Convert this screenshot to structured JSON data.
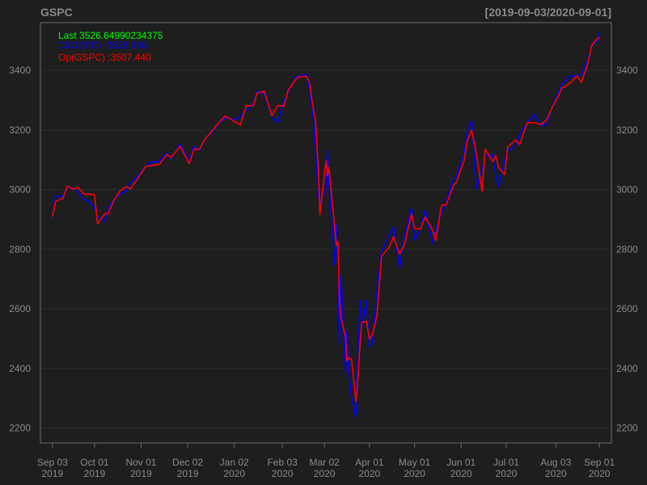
{
  "chart_data": {
    "type": "line",
    "title": "GSPC",
    "date_range": "[2019-09-03/2020-09-01]",
    "xlabel": "",
    "ylabel": "",
    "ylim": [
      2150,
      3560
    ],
    "xlim": [
      "2019-08-26",
      "2020-09-09"
    ],
    "grid": true,
    "legend_position": "top-left",
    "colors": {
      "background": "#1e1e1e",
      "frame": "#6a6a6a",
      "grid": "#2c2c2c",
      "text": "#8a8a8a",
      "last": "#00ff00",
      "cl": "#0000ff",
      "op": "#ff0000"
    },
    "legend": [
      {
        "key": "last",
        "text": "Last 3526.64990234375"
      },
      {
        "key": "cl",
        "text": "Cl(GSPC) :3526.650"
      },
      {
        "key": "op",
        "text": "Op(GSPC) :3507.440"
      }
    ],
    "y_ticks": [
      2200,
      2400,
      2600,
      2800,
      3000,
      3200,
      3400
    ],
    "x_ticks": [
      {
        "date": "2019-09-03",
        "label1": "Sep 03",
        "label2": "2019"
      },
      {
        "date": "2019-10-01",
        "label1": "Oct 01",
        "label2": "2019"
      },
      {
        "date": "2019-11-01",
        "label1": "Nov 01",
        "label2": "2019"
      },
      {
        "date": "2019-12-02",
        "label1": "Dec 02",
        "label2": "2019"
      },
      {
        "date": "2020-01-02",
        "label1": "Jan 02",
        "label2": "2020"
      },
      {
        "date": "2020-02-03",
        "label1": "Feb 03",
        "label2": "2020"
      },
      {
        "date": "2020-03-02",
        "label1": "Mar 02",
        "label2": "2020"
      },
      {
        "date": "2020-04-01",
        "label1": "Apr 01",
        "label2": "2020"
      },
      {
        "date": "2020-05-01",
        "label1": "May 01",
        "label2": "2020"
      },
      {
        "date": "2020-06-01",
        "label1": "Jun 01",
        "label2": "2020"
      },
      {
        "date": "2020-07-01",
        "label1": "Jul 01",
        "label2": "2020"
      },
      {
        "date": "2020-08-03",
        "label1": "Aug 03",
        "label2": "2020"
      },
      {
        "date": "2020-09-01",
        "label1": "Sep 01",
        "label2": "2020"
      }
    ],
    "series": [
      {
        "name": "Cl(GSPC)",
        "key": "cl",
        "points": [
          [
            "2019-09-03",
            2906
          ],
          [
            "2019-09-05",
            2976
          ],
          [
            "2019-09-10",
            2979
          ],
          [
            "2019-09-13",
            3007
          ],
          [
            "2019-09-17",
            3005
          ],
          [
            "2019-09-20",
            2992
          ],
          [
            "2019-09-24",
            2966
          ],
          [
            "2019-09-27",
            2962
          ],
          [
            "2019-10-01",
            2940
          ],
          [
            "2019-10-03",
            2910
          ],
          [
            "2019-10-08",
            2893
          ],
          [
            "2019-10-10",
            2938
          ],
          [
            "2019-10-14",
            2966
          ],
          [
            "2019-10-18",
            2986
          ],
          [
            "2019-10-22",
            2995
          ],
          [
            "2019-10-25",
            3023
          ],
          [
            "2019-10-30",
            3046
          ],
          [
            "2019-11-04",
            3078
          ],
          [
            "2019-11-08",
            3093
          ],
          [
            "2019-11-13",
            3094
          ],
          [
            "2019-11-18",
            3122
          ],
          [
            "2019-11-21",
            3103
          ],
          [
            "2019-11-27",
            3153
          ],
          [
            "2019-12-03",
            3093
          ],
          [
            "2019-12-06",
            3145
          ],
          [
            "2019-12-10",
            3132
          ],
          [
            "2019-12-13",
            3168
          ],
          [
            "2019-12-18",
            3191
          ],
          [
            "2019-12-23",
            3224
          ],
          [
            "2019-12-27",
            3240
          ],
          [
            "2020-01-03",
            3235
          ],
          [
            "2020-01-06",
            3246
          ],
          [
            "2020-01-10",
            3265
          ],
          [
            "2020-01-15",
            3289
          ],
          [
            "2020-01-17",
            3330
          ],
          [
            "2020-01-22",
            3321
          ],
          [
            "2020-01-27",
            3244
          ],
          [
            "2020-01-31",
            3225
          ],
          [
            "2020-02-04",
            3297
          ],
          [
            "2020-02-07",
            3327
          ],
          [
            "2020-02-12",
            3379
          ],
          [
            "2020-02-14",
            3380
          ],
          [
            "2020-02-19",
            3386
          ],
          [
            "2020-02-21",
            3337
          ],
          [
            "2020-02-24",
            3225
          ],
          [
            "2020-02-25",
            3128
          ],
          [
            "2020-02-27",
            2979
          ],
          [
            "2020-02-28",
            2954
          ],
          [
            "2020-03-03",
            3003
          ],
          [
            "2020-03-04",
            3130
          ],
          [
            "2020-03-05",
            3024
          ],
          [
            "2020-03-09",
            2746
          ],
          [
            "2020-03-10",
            2882
          ],
          [
            "2020-03-11",
            2741
          ],
          [
            "2020-03-12",
            2480
          ],
          [
            "2020-03-13",
            2711
          ],
          [
            "2020-03-16",
            2386
          ],
          [
            "2020-03-17",
            2529
          ],
          [
            "2020-03-18",
            2398
          ],
          [
            "2020-03-20",
            2305
          ],
          [
            "2020-03-23",
            2237
          ],
          [
            "2020-03-24",
            2447
          ],
          [
            "2020-03-26",
            2630
          ],
          [
            "2020-03-27",
            2541
          ],
          [
            "2020-03-30",
            2627
          ],
          [
            "2020-04-01",
            2470
          ],
          [
            "2020-04-03",
            2489
          ],
          [
            "2020-04-06",
            2664
          ],
          [
            "2020-04-09",
            2790
          ],
          [
            "2020-04-14",
            2846
          ],
          [
            "2020-04-17",
            2875
          ],
          [
            "2020-04-21",
            2737
          ],
          [
            "2020-04-24",
            2837
          ],
          [
            "2020-04-29",
            2939
          ],
          [
            "2020-05-01",
            2831
          ],
          [
            "2020-05-05",
            2868
          ],
          [
            "2020-05-08",
            2930
          ],
          [
            "2020-05-13",
            2820
          ],
          [
            "2020-05-15",
            2864
          ],
          [
            "2020-05-19",
            2922
          ],
          [
            "2020-05-22",
            2955
          ],
          [
            "2020-05-27",
            3036
          ],
          [
            "2020-05-29",
            3044
          ],
          [
            "2020-06-03",
            3122
          ],
          [
            "2020-06-05",
            3194
          ],
          [
            "2020-06-08",
            3232
          ],
          [
            "2020-06-11",
            3002
          ],
          [
            "2020-06-15",
            3067
          ],
          [
            "2020-06-17",
            3113
          ],
          [
            "2020-06-22",
            3117
          ],
          [
            "2020-06-24",
            3050
          ],
          [
            "2020-06-26",
            3009
          ],
          [
            "2020-06-30",
            3100
          ],
          [
            "2020-07-02",
            3130
          ],
          [
            "2020-07-07",
            3145
          ],
          [
            "2020-07-10",
            3185
          ],
          [
            "2020-07-15",
            3226
          ],
          [
            "2020-07-20",
            3251
          ],
          [
            "2020-07-24",
            3216
          ],
          [
            "2020-07-28",
            3218
          ],
          [
            "2020-07-31",
            3271
          ],
          [
            "2020-08-05",
            3327
          ],
          [
            "2020-08-07",
            3351
          ],
          [
            "2020-08-12",
            3380
          ],
          [
            "2020-08-17",
            3381
          ],
          [
            "2020-08-20",
            3385
          ],
          [
            "2020-08-24",
            3431
          ],
          [
            "2020-08-27",
            3484
          ],
          [
            "2020-08-31",
            3500
          ],
          [
            "2020-09-01",
            3526.65
          ]
        ]
      },
      {
        "name": "Op(GSPC)",
        "key": "op",
        "points": [
          [
            "2019-09-03",
            2909
          ],
          [
            "2019-09-05",
            2960
          ],
          [
            "2019-09-10",
            2971
          ],
          [
            "2019-09-13",
            3012
          ],
          [
            "2019-09-17",
            3001
          ],
          [
            "2019-09-20",
            3008
          ],
          [
            "2019-09-24",
            2985
          ],
          [
            "2019-09-27",
            2985
          ],
          [
            "2019-10-01",
            2983
          ],
          [
            "2019-10-03",
            2885
          ],
          [
            "2019-10-08",
            2920
          ],
          [
            "2019-10-10",
            2918
          ],
          [
            "2019-10-14",
            2965
          ],
          [
            "2019-10-18",
            2996
          ],
          [
            "2019-10-22",
            3010
          ],
          [
            "2019-10-25",
            3003
          ],
          [
            "2019-10-30",
            3039
          ],
          [
            "2019-11-04",
            3078
          ],
          [
            "2019-11-08",
            3081
          ],
          [
            "2019-11-13",
            3084
          ],
          [
            "2019-11-18",
            3117
          ],
          [
            "2019-11-21",
            3108
          ],
          [
            "2019-11-27",
            3145
          ],
          [
            "2019-12-03",
            3087
          ],
          [
            "2019-12-06",
            3134
          ],
          [
            "2019-12-10",
            3136
          ],
          [
            "2019-12-13",
            3166
          ],
          [
            "2019-12-18",
            3195
          ],
          [
            "2019-12-23",
            3226
          ],
          [
            "2019-12-27",
            3247
          ],
          [
            "2020-01-03",
            3226
          ],
          [
            "2020-01-06",
            3217
          ],
          [
            "2020-01-10",
            3281
          ],
          [
            "2020-01-15",
            3282
          ],
          [
            "2020-01-17",
            3323
          ],
          [
            "2020-01-22",
            3330
          ],
          [
            "2020-01-27",
            3247
          ],
          [
            "2020-01-31",
            3282
          ],
          [
            "2020-02-04",
            3280
          ],
          [
            "2020-02-07",
            3335
          ],
          [
            "2020-02-12",
            3370
          ],
          [
            "2020-02-14",
            3378
          ],
          [
            "2020-02-19",
            3380
          ],
          [
            "2020-02-21",
            3360
          ],
          [
            "2020-02-24",
            3257
          ],
          [
            "2020-02-25",
            3238
          ],
          [
            "2020-02-27",
            3063
          ],
          [
            "2020-02-28",
            2916
          ],
          [
            "2020-03-03",
            3096
          ],
          [
            "2020-03-04",
            3045
          ],
          [
            "2020-03-05",
            3075
          ],
          [
            "2020-03-09",
            2863
          ],
          [
            "2020-03-10",
            2813
          ],
          [
            "2020-03-11",
            2825
          ],
          [
            "2020-03-12",
            2630
          ],
          [
            "2020-03-13",
            2569
          ],
          [
            "2020-03-16",
            2508
          ],
          [
            "2020-03-17",
            2425
          ],
          [
            "2020-03-18",
            2436
          ],
          [
            "2020-03-20",
            2431
          ],
          [
            "2020-03-23",
            2290
          ],
          [
            "2020-03-24",
            2344
          ],
          [
            "2020-03-26",
            2501
          ],
          [
            "2020-03-27",
            2555
          ],
          [
            "2020-03-30",
            2558
          ],
          [
            "2020-04-01",
            2498
          ],
          [
            "2020-04-03",
            2514
          ],
          [
            "2020-04-06",
            2578
          ],
          [
            "2020-04-09",
            2776
          ],
          [
            "2020-04-14",
            2805
          ],
          [
            "2020-04-17",
            2842
          ],
          [
            "2020-04-21",
            2784
          ],
          [
            "2020-04-24",
            2812
          ],
          [
            "2020-04-29",
            2918
          ],
          [
            "2020-05-01",
            2869
          ],
          [
            "2020-05-05",
            2868
          ],
          [
            "2020-05-08",
            2908
          ],
          [
            "2020-05-13",
            2865
          ],
          [
            "2020-05-15",
            2829
          ],
          [
            "2020-05-19",
            2948
          ],
          [
            "2020-05-22",
            2948
          ],
          [
            "2020-05-27",
            3015
          ],
          [
            "2020-05-29",
            3025
          ],
          [
            "2020-06-03",
            3098
          ],
          [
            "2020-06-05",
            3163
          ],
          [
            "2020-06-08",
            3199
          ],
          [
            "2020-06-11",
            3123
          ],
          [
            "2020-06-15",
            2993
          ],
          [
            "2020-06-17",
            3136
          ],
          [
            "2020-06-22",
            3094
          ],
          [
            "2020-06-24",
            3114
          ],
          [
            "2020-06-26",
            3073
          ],
          [
            "2020-06-30",
            3050
          ],
          [
            "2020-07-02",
            3143
          ],
          [
            "2020-07-07",
            3166
          ],
          [
            "2020-07-10",
            3152
          ],
          [
            "2020-07-15",
            3225
          ],
          [
            "2020-07-20",
            3224
          ],
          [
            "2020-07-24",
            3218
          ],
          [
            "2020-07-28",
            3234
          ],
          [
            "2020-07-31",
            3270
          ],
          [
            "2020-08-05",
            3317
          ],
          [
            "2020-08-07",
            3340
          ],
          [
            "2020-08-12",
            3355
          ],
          [
            "2020-08-17",
            3381
          ],
          [
            "2020-08-20",
            3360
          ],
          [
            "2020-08-24",
            3418
          ],
          [
            "2020-08-27",
            3485
          ],
          [
            "2020-08-31",
            3509
          ],
          [
            "2020-09-01",
            3507.44
          ]
        ]
      }
    ]
  }
}
